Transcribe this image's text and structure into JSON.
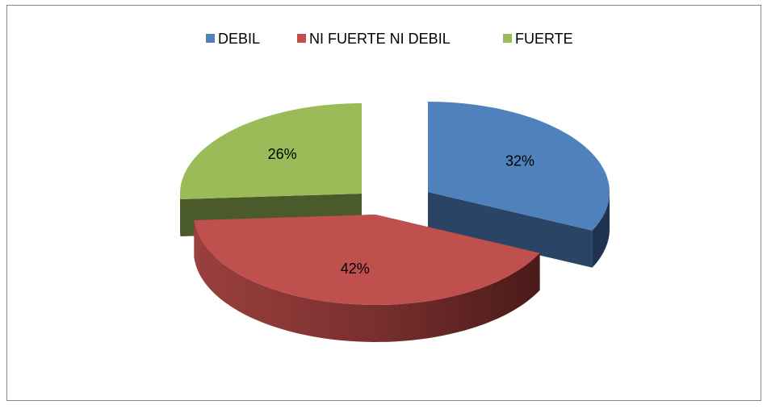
{
  "chart_data": {
    "type": "pie3d",
    "categories": [
      "DEBIL",
      "NI FUERTE NI DEBIL",
      "FUERTE"
    ],
    "values": [
      32,
      42,
      26
    ],
    "value_labels": [
      "32%",
      "42%",
      "26%"
    ],
    "colors": [
      "#4f81bd",
      "#c0504d",
      "#9bbb59"
    ],
    "legend": "top"
  }
}
